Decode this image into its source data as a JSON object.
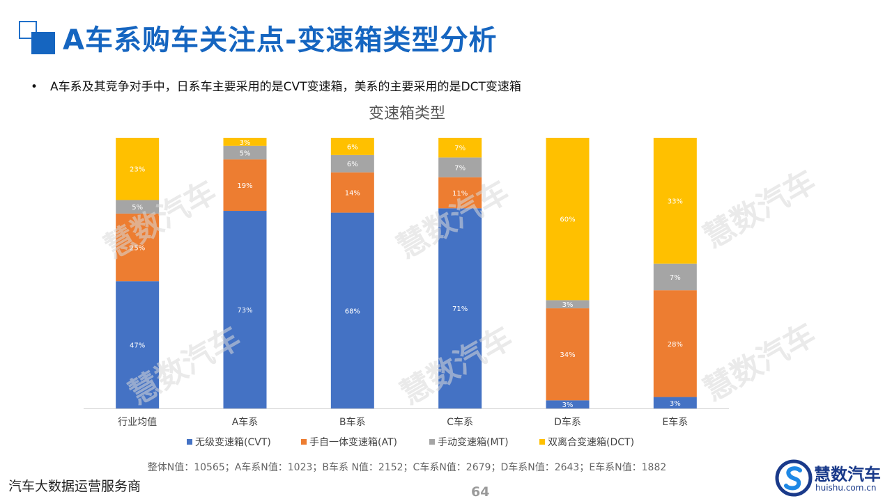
{
  "slide": {
    "title": "A车系购车关注点-变速箱类型分析",
    "bullet": "A车系及其竞争对手中，日系车主要采用的是CVT变速箱，美系的主要采用的是DCT变速箱",
    "footer_left": "汽车大数据运营服务商",
    "page_number": "64",
    "sample_note": "整体N值：10565；A车系N值：1023；B车系 N值：2152；C车系N值：2679；D车系N值：2643；E车系N值：1882",
    "watermark_text": "慧数汽车",
    "brand_name": "慧数汽车",
    "brand_url": "huishu.com.cn",
    "brand_icon": "huishu-s-logo-icon"
  },
  "chart_data": {
    "type": "bar",
    "stacked": true,
    "title": "变速箱类型",
    "categories": [
      "行业均值",
      "A车系",
      "B车系",
      "C车系",
      "D车系",
      "E车系"
    ],
    "series": [
      {
        "name": "无级变速箱(CVT)",
        "color": "#4472c4",
        "values": [
          47,
          73,
          68,
          71,
          3,
          3
        ]
      },
      {
        "name": "手自一体变速箱(AT)",
        "color": "#ed7d31",
        "values": [
          25,
          19,
          14,
          11,
          34,
          28
        ]
      },
      {
        "name": "手动变速箱(MT)",
        "color": "#a5a5a5",
        "values": [
          5,
          5,
          6,
          7,
          3,
          7
        ]
      },
      {
        "name": "双离合变速箱(DCT)",
        "color": "#ffc000",
        "values": [
          23,
          3,
          6,
          7,
          60,
          33
        ]
      }
    ],
    "value_suffix": "%",
    "legend_position": "bottom",
    "grid": false
  }
}
